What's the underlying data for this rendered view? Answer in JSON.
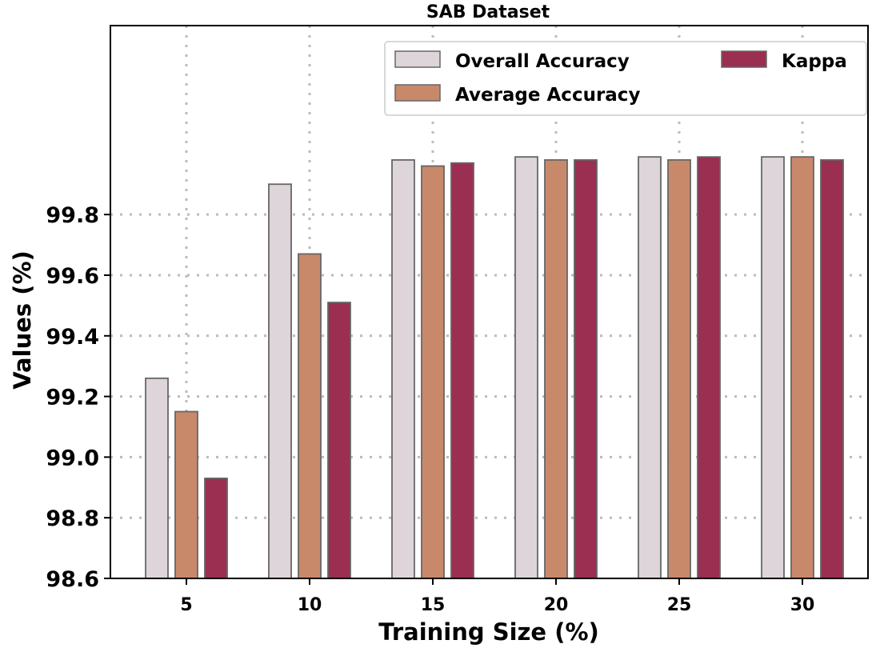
{
  "chart_data": {
    "type": "bar",
    "title": "SAB Dataset",
    "xlabel": "Training Size (%)",
    "ylabel": "Values (%)",
    "categories": [
      "5",
      "10",
      "15",
      "20",
      "25",
      "30"
    ],
    "ylim": [
      98.6,
      100.46
    ],
    "yticks": [
      "98.6",
      "98.8",
      "99.0",
      "99.2",
      "99.4",
      "99.6",
      "99.8"
    ],
    "grid": true,
    "legend_position": "top-right",
    "series": [
      {
        "name": "Overall Accuracy",
        "color": "#ddd5d9",
        "values": [
          99.26,
          99.9,
          99.98,
          99.99,
          99.99,
          99.99
        ]
      },
      {
        "name": "Average Accuracy",
        "color": "#c8896a",
        "values": [
          99.15,
          99.67,
          99.96,
          99.98,
          99.98,
          99.99
        ]
      },
      {
        "name": "Kappa",
        "color": "#9a2f52",
        "values": [
          98.93,
          99.51,
          99.97,
          99.98,
          99.99,
          99.98
        ]
      }
    ]
  }
}
